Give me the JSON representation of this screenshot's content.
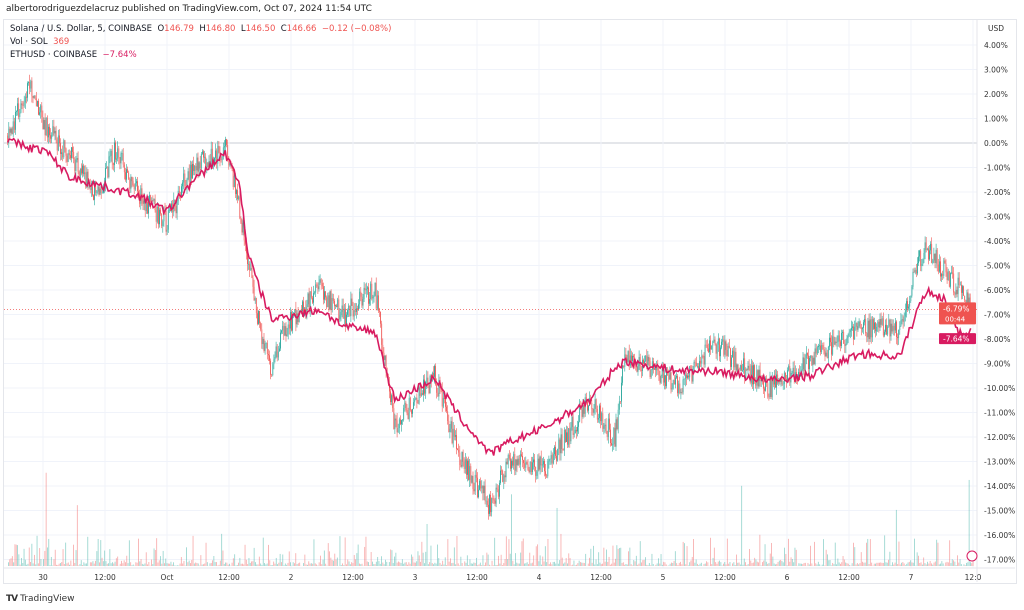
{
  "header": {
    "published": "albertorodriguezdelacruz published on TradingView.com, Oct 07, 2024 11:54 UTC"
  },
  "legend": {
    "symbol": "Solana / U.S. Dollar, 5, COINBASE",
    "o_label": "O",
    "o": "146.79",
    "h_label": "H",
    "h": "146.80",
    "l_label": "L",
    "l": "146.50",
    "c_label": "C",
    "c": "146.66",
    "change": "−0.12 (−0.08%)",
    "vol_label": "Vol · SOL",
    "vol": "369",
    "compare_label": "ETHUSD · COINBASE",
    "compare_value": "−7.64%"
  },
  "footer": {
    "brand": "TradingView"
  },
  "colors": {
    "up": "#26a69a",
    "down": "#ef5350",
    "eth": "#d81b60",
    "grid": "#f0f3fa"
  },
  "chart_data": {
    "type": "line",
    "currency": "USD",
    "ylim": [
      -17.5,
      4.5
    ],
    "y_ticks": [
      "4.00%",
      "3.00%",
      "2.00%",
      "1.00%",
      "0.00%",
      "-1.00%",
      "-2.00%",
      "-3.00%",
      "-4.00%",
      "-5.00%",
      "-6.00%",
      "-7.00%",
      "-8.00%",
      "-9.00%",
      "-10.00%",
      "-11.00%",
      "-12.00%",
      "-13.00%",
      "-14.00%",
      "-15.00%",
      "-16.00%",
      "-17.00%"
    ],
    "x_ticks": [
      "30",
      "12:00",
      "Oct",
      "12:00",
      "2",
      "12:00",
      "3",
      "12:00",
      "4",
      "12:00",
      "5",
      "12:00",
      "6",
      "12:00",
      "7",
      "12:0"
    ],
    "times": [
      "09-29 17:10",
      "09-29 21:30",
      "09-30 00:25",
      "09-30 05:15",
      "09-30 10:30",
      "09-30 13:55",
      "09-30 17:50",
      "10-01 00:00",
      "10-01 04:25",
      "10-01 11:15",
      "10-01 14:05",
      "10-01 15:40",
      "10-01 18:00",
      "10-01 20:20",
      "10-01 22:50",
      "10-02 05:35",
      "10-02 10:25",
      "10-02 16:15",
      "10-02 20:05",
      "10-03 03:50",
      "10-03 08:40",
      "10-03 14:30",
      "10-03 18:25",
      "10-04 01:10",
      "10-04 09:50",
      "10-04 14:40",
      "10-04 16:35",
      "10-05 03:15",
      "10-05 10:00",
      "10-05 20:40",
      "10-06 04:25",
      "10-06 14:05",
      "10-06 21:50",
      "10-07 01:40",
      "10-07 03:15",
      "10-07 06:30",
      "10-07 09:25",
      "10-07 11:50"
    ],
    "series": [
      {
        "name": "Solana / U.S. Dollar",
        "values": [
          0.3,
          2.4,
          0.7,
          -0.5,
          -2.1,
          -0.3,
          -1.9,
          -3.3,
          -1.1,
          -0.2,
          -2.7,
          -4.8,
          -7.6,
          -9.2,
          -7.6,
          -6.0,
          -7.0,
          -6.0,
          -11.5,
          -9.5,
          -12.9,
          -14.8,
          -12.9,
          -13.3,
          -10.5,
          -12.1,
          -8.6,
          -9.9,
          -8.2,
          -10.0,
          -8.9,
          -7.6,
          -7.6,
          -4.6,
          -4.4,
          -5.2,
          -6.0,
          -6.79
        ]
      },
      {
        "name": "ETHUSD",
        "values": [
          0.1,
          -0.2,
          -0.3,
          -1.4,
          -1.7,
          -1.9,
          -2.1,
          -2.8,
          -1.7,
          -0.4,
          -1.7,
          -4.5,
          -6.0,
          -7.2,
          -7.1,
          -6.8,
          -7.5,
          -7.7,
          -10.5,
          -9.6,
          -11.2,
          -12.7,
          -12.2,
          -11.6,
          -10.5,
          -9.2,
          -8.9,
          -9.3,
          -9.3,
          -9.7,
          -9.5,
          -8.6,
          -8.7,
          -6.6,
          -6.0,
          -6.4,
          -7.8,
          -7.64
        ]
      }
    ],
    "last_labels": {
      "sol": "-6.79%",
      "countdown": "00:44",
      "eth": "-7.64%"
    },
    "grid": true
  }
}
